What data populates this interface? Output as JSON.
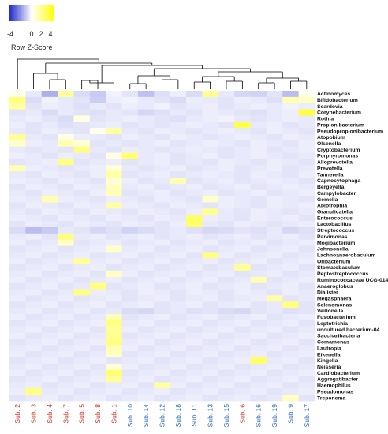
{
  "legend": {
    "title": "Row Z-Score",
    "ticks": [
      "-4",
      "0",
      "2",
      "4"
    ],
    "tick_values": [
      -4,
      0,
      2,
      4
    ],
    "range": [
      -5,
      5
    ],
    "colors": {
      "low": "#1a22c8",
      "mid": "#ffffff",
      "high": "#ffff00"
    }
  },
  "chart_data": {
    "type": "heatmap",
    "title": "",
    "rows": [
      "Actinomyces",
      "Bifidobacterium",
      "Scardovia",
      "Corynebacterium",
      "Rothia",
      "Propionibacterium",
      "Pseudopropionibacterium",
      "Atopobium",
      "Olsenella",
      "Cryptobacterium",
      "Porphyromonas",
      "Alloprevotella",
      "Prevotella",
      "Tannerella",
      "Capnocytophaga",
      "Bergeyella",
      "Campylobacter",
      "Gemella",
      "Abiotrophia",
      "Granulicatella",
      "Enterococcus",
      "Lactobacillus",
      "Streptococcus",
      "Parvimonas",
      "Mogibacterium",
      "Johnsonella",
      "Lachnoanaerobaculum",
      "Oribacterium",
      "Stomatobaculum",
      "Peptostreptococcus",
      "Ruminococcaceae UCG-014",
      "Anaeroglobus",
      "Dialister",
      "Megasphaera",
      "Selenomonas",
      "Veillonella",
      "Fusobacterium",
      "Leptotrichia",
      "uncultured bacterium-04",
      "Saccharibacteria",
      "Comamonas",
      "Lautropia",
      "Eikenella",
      "Kingella",
      "Neisseria",
      "Cardiobacterium",
      "Aggregatibacter",
      "Haemophilus",
      "Pseudomonas",
      "Treponema"
    ],
    "columns": [
      "Sub. 2",
      "Sub. 3",
      "Sub. 4",
      "Sub. 7",
      "Sub. 5",
      "Sub. 8",
      "Sub. 1",
      "Sub. 10",
      "Sub. 14",
      "Sub. 12",
      "Sub. 18",
      "Sub. 11",
      "Sub. 13",
      "Sub. 15",
      "Sub. 6",
      "Sub. 16",
      "Sub. 19",
      "Sub. 9",
      "Sub. 17"
    ],
    "column_groups": [
      "red",
      "red",
      "red",
      "red",
      "red",
      "red",
      "red",
      "blue",
      "blue",
      "blue",
      "blue",
      "blue",
      "blue",
      "blue",
      "red",
      "blue",
      "blue",
      "blue",
      "blue"
    ],
    "group_colors": {
      "red": "#c0392b",
      "blue": "#2e6db4"
    },
    "values": [
      [
        0.4,
        -0.5,
        -1.8,
        2.0,
        -0.8,
        -1.2,
        -0.3,
        -0.6,
        -1.4,
        -0.7,
        -0.4,
        -0.8,
        2.2,
        -0.5,
        -0.9,
        -1.0,
        -0.6,
        -1.5,
        0.3
      ],
      [
        2.5,
        -0.8,
        -0.3,
        -0.5,
        -0.6,
        -1.1,
        -0.4,
        -0.3,
        -0.5,
        -0.6,
        -0.8,
        -0.4,
        -0.5,
        -0.6,
        -0.4,
        -0.5,
        -0.7,
        1.5,
        1.2
      ],
      [
        1.8,
        -0.6,
        -0.4,
        -0.5,
        -0.7,
        -0.5,
        -0.6,
        -0.4,
        -0.5,
        -0.3,
        -0.6,
        -0.5,
        -0.4,
        -0.6,
        -0.5,
        -0.4,
        -0.5,
        -0.3,
        -0.4
      ],
      [
        -0.6,
        -0.5,
        -0.8,
        -0.5,
        -0.6,
        -0.7,
        -0.5,
        -0.6,
        -0.9,
        -0.7,
        -0.5,
        -0.6,
        -0.4,
        -0.5,
        -0.6,
        -0.7,
        -0.5,
        -0.4,
        3.8
      ],
      [
        -0.5,
        -0.4,
        -0.6,
        -0.8,
        0.5,
        -0.6,
        -0.5,
        -0.4,
        -0.5,
        -0.6,
        -0.7,
        -0.5,
        -0.4,
        -0.3,
        -0.5,
        -0.6,
        -0.5,
        -0.4,
        -0.5
      ],
      [
        -0.4,
        -0.6,
        -0.5,
        -0.7,
        -0.6,
        -0.5,
        -0.4,
        -0.6,
        -0.5,
        -0.6,
        -0.5,
        -0.4,
        -0.5,
        -0.6,
        3.5,
        -0.5,
        -0.4,
        -0.6,
        -0.5
      ],
      [
        -0.5,
        -0.6,
        -0.4,
        -0.5,
        -0.6,
        0.3,
        1.8,
        -0.5,
        -0.6,
        -0.4,
        -0.5,
        -0.6,
        -0.5,
        -0.4,
        -0.5,
        -0.6,
        -0.4,
        -0.5,
        -0.6
      ],
      [
        2.0,
        -0.5,
        -0.6,
        0.5,
        -0.4,
        -0.5,
        -0.6,
        -0.4,
        -0.5,
        -0.6,
        -0.4,
        -0.5,
        -0.6,
        -0.5,
        -0.4,
        -0.5,
        -0.6,
        -0.4,
        -0.5
      ],
      [
        1.0,
        -0.4,
        -0.5,
        1.5,
        0.8,
        -0.6,
        -0.5,
        -0.6,
        -0.5,
        -0.4,
        -0.6,
        -0.5,
        -0.4,
        -0.5,
        -0.6,
        -0.4,
        -0.5,
        -0.6,
        -0.4
      ],
      [
        -0.5,
        -0.6,
        -0.5,
        -0.6,
        2.5,
        -0.5,
        -0.6,
        -0.4,
        -0.5,
        -0.6,
        -0.5,
        -0.4,
        -0.5,
        -0.6,
        -0.5,
        -0.4,
        -0.6,
        -0.5,
        -0.4
      ],
      [
        -0.4,
        -0.5,
        -0.6,
        -0.4,
        -0.5,
        -0.6,
        0.5,
        2.8,
        -0.5,
        -0.4,
        -0.6,
        -0.5,
        -0.4,
        -0.6,
        -0.5,
        -0.4,
        -0.5,
        -0.6,
        -0.5
      ],
      [
        -0.6,
        -0.5,
        -0.4,
        2.5,
        -0.6,
        -0.5,
        -0.4,
        -0.6,
        -0.5,
        -0.4,
        -0.6,
        -0.5,
        -0.6,
        -0.4,
        -0.5,
        -0.6,
        -0.4,
        -0.5,
        -0.6
      ],
      [
        1.5,
        -0.4,
        -0.5,
        -0.6,
        -0.5,
        -0.4,
        0.8,
        -0.5,
        -0.6,
        -0.5,
        -0.4,
        -0.6,
        -0.5,
        -0.4,
        -0.6,
        -0.5,
        -0.4,
        -0.6,
        -0.5
      ],
      [
        -0.5,
        -0.6,
        -0.4,
        -0.5,
        -0.6,
        -0.4,
        1.8,
        -0.6,
        -0.5,
        -0.4,
        -0.6,
        -0.5,
        -0.4,
        -0.5,
        -0.6,
        -0.4,
        -0.5,
        -0.6,
        -0.4
      ],
      [
        -0.4,
        -0.5,
        -0.6,
        -0.4,
        -0.5,
        -0.6,
        0.8,
        -0.4,
        -0.6,
        -0.5,
        1.5,
        -0.6,
        -0.5,
        -0.4,
        -0.6,
        -0.5,
        -0.4,
        -0.5,
        -0.6
      ],
      [
        -0.6,
        -0.4,
        -0.5,
        -0.6,
        -0.4,
        -0.5,
        1.2,
        -0.5,
        -0.4,
        -0.6,
        -0.5,
        -0.4,
        -0.6,
        -0.5,
        -0.4,
        -0.6,
        -0.5,
        -0.4,
        -0.5
      ],
      [
        -0.5,
        -0.6,
        -0.4,
        -0.5,
        -0.6,
        -0.4,
        1.5,
        -0.6,
        -0.5,
        -0.4,
        -0.6,
        -0.5,
        -0.4,
        -0.6,
        -0.5,
        -0.4,
        -0.6,
        -0.5,
        -0.4
      ],
      [
        -0.4,
        -0.5,
        1.5,
        -0.4,
        -0.5,
        -0.6,
        -0.4,
        -0.5,
        -0.6,
        -0.4,
        -0.5,
        -0.6,
        1.0,
        -0.4,
        -0.5,
        -0.6,
        -0.4,
        -0.5,
        -0.6
      ],
      [
        -0.6,
        -0.4,
        -0.5,
        -0.6,
        -0.4,
        -0.5,
        1.8,
        -0.4,
        -0.5,
        -0.6,
        -0.4,
        -0.5,
        -0.6,
        -0.4,
        -0.5,
        -0.6,
        -0.4,
        -0.5,
        -0.4
      ],
      [
        -0.5,
        -0.6,
        -0.4,
        -0.5,
        -0.6,
        -0.4,
        -0.5,
        -0.6,
        -0.4,
        -0.5,
        -0.6,
        -0.4,
        2.2,
        -0.5,
        -0.6,
        -0.4,
        -0.5,
        -0.6,
        -0.5
      ],
      [
        -0.4,
        -0.5,
        -0.6,
        -0.4,
        -0.5,
        -0.6,
        -0.4,
        -0.5,
        -0.6,
        -0.4,
        -0.5,
        3.0,
        -0.4,
        -0.5,
        -0.6,
        -0.4,
        -0.5,
        -0.4,
        -0.6
      ],
      [
        -0.6,
        -0.4,
        -0.5,
        -0.6,
        -0.4,
        -0.5,
        -0.6,
        -0.4,
        -0.5,
        -0.6,
        -0.4,
        3.0,
        -0.5,
        -0.6,
        -0.4,
        -0.5,
        -0.6,
        -0.5,
        -0.4
      ],
      [
        -0.8,
        -1.5,
        -1.2,
        -0.5,
        -0.6,
        -0.9,
        -0.7,
        -1.0,
        -0.8,
        -0.6,
        -0.5,
        -0.7,
        -0.9,
        -0.8,
        -0.6,
        -0.7,
        -0.5,
        -0.9,
        -0.7
      ],
      [
        -0.5,
        -0.4,
        -0.6,
        2.5,
        -0.5,
        -0.4,
        -0.6,
        -0.5,
        -0.4,
        -0.6,
        -0.5,
        -0.4,
        -0.6,
        -0.5,
        -0.4,
        -0.6,
        -0.5,
        -0.4,
        -0.6
      ],
      [
        -0.4,
        -0.6,
        -0.5,
        1.2,
        -0.6,
        -0.5,
        -0.4,
        -0.6,
        -0.5,
        -0.4,
        -0.6,
        -0.5,
        -0.4,
        -0.6,
        -0.5,
        -0.4,
        -0.6,
        -0.5,
        -0.4
      ],
      [
        -0.6,
        -0.5,
        -0.4,
        -0.6,
        -0.5,
        -0.4,
        1.0,
        -0.5,
        -0.4,
        -0.6,
        -0.5,
        -0.4,
        -0.6,
        -0.5,
        -0.4,
        -0.6,
        -0.5,
        -0.4,
        -0.6
      ],
      [
        -0.5,
        -0.4,
        -0.6,
        -0.5,
        -0.4,
        -0.6,
        -0.5,
        -0.4,
        -0.6,
        -0.5,
        -0.4,
        -0.6,
        2.5,
        -0.4,
        -0.6,
        -0.5,
        -0.4,
        -0.6,
        -0.5
      ],
      [
        -0.4,
        -0.6,
        -0.5,
        -0.4,
        2.0,
        -0.5,
        -0.4,
        -0.6,
        -0.5,
        -0.4,
        -0.6,
        -0.5,
        -0.4,
        -0.6,
        -0.5,
        -0.4,
        -0.6,
        -0.5,
        -0.4
      ],
      [
        -0.6,
        -0.5,
        -0.4,
        -0.6,
        -0.5,
        -0.4,
        -0.6,
        -0.5,
        -0.4,
        -0.6,
        -0.5,
        -0.4,
        -0.6,
        -0.5,
        2.0,
        -0.6,
        -0.5,
        -0.4,
        -0.6
      ],
      [
        -0.5,
        -0.4,
        -0.6,
        -0.5,
        -0.4,
        -0.6,
        1.2,
        -0.4,
        -0.6,
        -0.5,
        -0.4,
        -0.6,
        -0.5,
        -0.4,
        -0.6,
        -0.5,
        -0.4,
        -0.6,
        -0.5
      ],
      [
        -0.4,
        -0.6,
        -0.5,
        -0.4,
        -0.6,
        -0.5,
        -0.4,
        -0.6,
        -0.5,
        -0.4,
        -0.6,
        -0.5,
        -0.4,
        -0.6,
        -0.5,
        1.5,
        -0.6,
        -0.5,
        -0.4
      ],
      [
        -0.6,
        -0.5,
        -0.4,
        -0.6,
        -0.5,
        2.5,
        -0.6,
        -0.5,
        -0.4,
        -0.6,
        -0.5,
        -0.4,
        -0.6,
        -0.5,
        -0.4,
        -0.6,
        -0.5,
        -0.4,
        -0.6
      ],
      [
        -0.5,
        -0.4,
        -0.6,
        -0.5,
        2.5,
        -0.4,
        -0.5,
        -0.6,
        -0.4,
        -0.5,
        -0.6,
        -0.4,
        -0.5,
        -0.6,
        -0.4,
        -0.5,
        -0.6,
        -0.4,
        -0.5
      ],
      [
        -0.4,
        -0.6,
        -0.5,
        -0.4,
        -0.6,
        -0.5,
        -0.4,
        -0.6,
        -0.5,
        -0.4,
        -0.6,
        -0.5,
        -0.4,
        -0.6,
        -0.5,
        -0.4,
        1.8,
        -0.6,
        -0.5
      ],
      [
        -0.6,
        -0.5,
        -0.4,
        -0.6,
        -0.5,
        -0.4,
        -0.6,
        -0.5,
        -0.4,
        -0.6,
        -0.5,
        -0.4,
        -0.6,
        -0.5,
        -0.4,
        -0.6,
        -0.5,
        2.5,
        -0.6
      ],
      [
        -0.5,
        -0.4,
        -0.6,
        -0.5,
        -0.4,
        -0.6,
        -0.5,
        -0.8,
        -0.9,
        -0.6,
        -0.5,
        -0.7,
        -0.6,
        -0.8,
        -0.9,
        -0.6,
        -0.5,
        -0.7,
        -0.6
      ],
      [
        -0.4,
        -0.6,
        -0.5,
        -0.4,
        -0.6,
        -0.5,
        1.5,
        -0.6,
        -0.5,
        -0.4,
        -0.6,
        -0.5,
        -0.4,
        -0.6,
        -0.5,
        -0.4,
        -0.6,
        -0.5,
        -0.4
      ],
      [
        -0.6,
        -0.5,
        -0.4,
        -0.6,
        -0.5,
        -0.4,
        2.5,
        -0.5,
        -0.4,
        -0.6,
        -0.5,
        -0.4,
        -0.6,
        -0.5,
        -0.4,
        -0.6,
        -0.5,
        -0.4,
        -0.6
      ],
      [
        -0.5,
        -0.4,
        -0.6,
        -0.5,
        -0.4,
        -0.6,
        2.0,
        -0.4,
        -0.6,
        -0.5,
        -0.4,
        -0.6,
        -0.5,
        -0.4,
        -0.6,
        -0.5,
        -0.4,
        -0.6,
        -0.5
      ],
      [
        -0.4,
        -0.6,
        -0.5,
        -0.4,
        -0.6,
        -0.5,
        2.2,
        -0.6,
        -0.5,
        -0.4,
        -0.6,
        -0.5,
        -0.4,
        -0.6,
        -0.5,
        -0.4,
        -0.6,
        -0.5,
        -0.4
      ],
      [
        -0.6,
        -0.5,
        -0.4,
        -0.6,
        -0.5,
        -0.4,
        2.5,
        -0.5,
        -0.4,
        -0.6,
        -0.5,
        -0.4,
        -0.6,
        -0.5,
        -0.4,
        -0.6,
        -0.5,
        -0.4,
        -0.6
      ],
      [
        -0.5,
        -0.4,
        -0.6,
        -0.5,
        -0.4,
        -0.6,
        1.5,
        -0.4,
        -0.6,
        -0.5,
        -0.4,
        -0.6,
        -0.5,
        -0.4,
        -0.6,
        -0.5,
        -0.4,
        -0.6,
        -0.5
      ],
      [
        -0.4,
        -0.6,
        -0.5,
        -0.4,
        -0.6,
        -0.5,
        1.2,
        -0.6,
        -0.5,
        -0.4,
        -0.6,
        -0.5,
        -0.4,
        -0.6,
        -0.5,
        -0.4,
        -0.6,
        -0.5,
        -0.4
      ],
      [
        -0.6,
        -0.5,
        -0.4,
        -0.6,
        -0.5,
        -0.4,
        -0.6,
        -0.5,
        -0.4,
        -0.6,
        -0.5,
        -0.4,
        -0.6,
        -0.5,
        -0.4,
        3.0,
        -0.5,
        -0.4,
        -0.6
      ],
      [
        -0.5,
        -0.4,
        -0.6,
        -0.5,
        -0.4,
        -0.6,
        0.8,
        -0.4,
        -0.6,
        -0.5,
        -0.4,
        -0.6,
        -0.5,
        -0.4,
        -0.6,
        -0.5,
        -0.4,
        -0.6,
        -0.5
      ],
      [
        -0.4,
        -0.6,
        -0.5,
        -0.4,
        -0.6,
        -0.5,
        2.8,
        -0.6,
        -0.5,
        -0.4,
        -0.6,
        -0.5,
        -0.4,
        -0.6,
        -0.5,
        -0.4,
        -0.6,
        -0.5,
        -0.4
      ],
      [
        -0.6,
        -0.5,
        -0.4,
        -0.6,
        -0.5,
        -0.4,
        2.0,
        -0.5,
        -0.4,
        -0.6,
        -0.5,
        -0.4,
        -0.6,
        -0.5,
        -0.4,
        -0.6,
        -0.5,
        -0.4,
        -0.6
      ],
      [
        -0.5,
        -0.4,
        -0.6,
        -0.5,
        -0.4,
        -0.6,
        -0.5,
        -0.4,
        -0.6,
        1.8,
        -0.4,
        -0.6,
        -0.5,
        -0.4,
        -0.6,
        -0.5,
        -0.4,
        -0.6,
        -0.5
      ],
      [
        -0.4,
        2.5,
        -0.5,
        -0.4,
        -0.6,
        -0.5,
        -0.4,
        -0.6,
        -0.5,
        -0.4,
        -0.6,
        -0.5,
        -0.4,
        -0.6,
        -0.5,
        -0.4,
        -0.6,
        -0.5,
        -0.4
      ],
      [
        -0.6,
        -0.5,
        -0.4,
        -0.6,
        -0.5,
        -0.4,
        -0.6,
        -0.5,
        -0.4,
        -0.6,
        -0.5,
        -0.4,
        -0.6,
        -0.5,
        -0.4,
        -0.6,
        -0.5,
        1.2,
        -0.6
      ]
    ]
  }
}
